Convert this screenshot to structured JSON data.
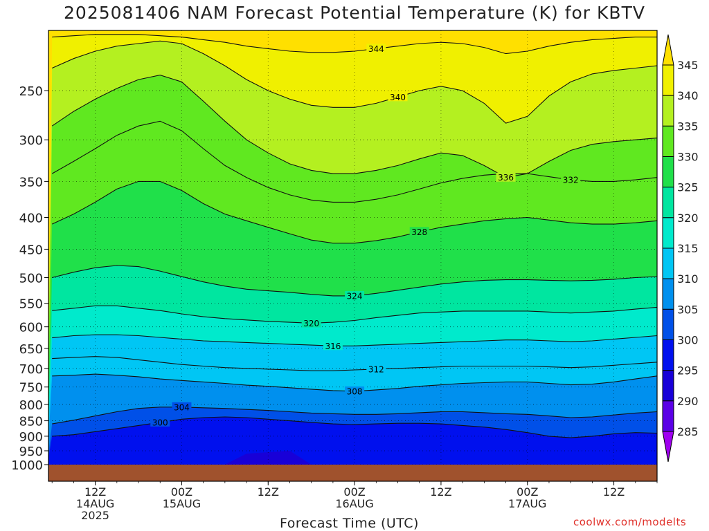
{
  "title": "2025081406 NAM Forecast Potential Temperature (K) for KBTV",
  "credit": "coolwx.com/modelts",
  "chart_data": {
    "type": "heatmap",
    "title": "2025081406 NAM Forecast Potential Temperature (K) for KBTV",
    "xlabel": "Forecast Time (UTC)",
    "ylabel": "",
    "x_ticks": [
      {
        "hour": 6,
        "lines": [
          "12Z",
          "14AUG",
          "2025"
        ]
      },
      {
        "hour": 18,
        "lines": [
          "00Z",
          "15AUG"
        ]
      },
      {
        "hour": 30,
        "lines": [
          "12Z"
        ]
      },
      {
        "hour": 42,
        "lines": [
          "00Z",
          "16AUG"
        ]
      },
      {
        "hour": 54,
        "lines": [
          "12Z"
        ]
      },
      {
        "hour": 66,
        "lines": [
          "00Z",
          "17AUG"
        ]
      },
      {
        "hour": 78,
        "lines": [
          "12Z"
        ]
      }
    ],
    "xlim_hours": [
      -0.5,
      84
    ],
    "y_ticks": [
      250,
      300,
      350,
      400,
      450,
      500,
      550,
      600,
      650,
      700,
      750,
      800,
      850,
      900,
      950,
      1000
    ],
    "ylim_hpa": [
      200,
      1000
    ],
    "y_scale": "log",
    "grid": "dotted",
    "colorbar_levels": [
      285,
      290,
      295,
      300,
      305,
      310,
      315,
      320,
      325,
      330,
      335,
      340,
      345
    ],
    "colorbar_colors": [
      "#a000f0",
      "#5a00e6",
      "#1800d8",
      "#0010ee",
      "#0050e8",
      "#0090ee",
      "#00c6f4",
      "#00eacc",
      "#00e6a0",
      "#20e04a",
      "#60e820",
      "#b4f020",
      "#f0f000",
      "#ffe000"
    ],
    "times": [
      0,
      3,
      6,
      9,
      12,
      15,
      18,
      21,
      24,
      27,
      30,
      33,
      36,
      39,
      42,
      45,
      48,
      51,
      54,
      57,
      60,
      63,
      66,
      69,
      72,
      75,
      78,
      81,
      84
    ],
    "series": [
      {
        "isotherm": 300,
        "pressure": [
          900,
          895,
          885,
          875,
          865,
          855,
          845,
          840,
          838,
          840,
          845,
          850,
          855,
          860,
          862,
          860,
          858,
          858,
          860,
          865,
          870,
          878,
          888,
          900,
          905,
          900,
          892,
          888,
          890
        ]
      },
      {
        "isotherm": 304,
        "pressure": [
          860,
          848,
          835,
          822,
          812,
          808,
          808,
          810,
          812,
          815,
          818,
          822,
          826,
          828,
          830,
          830,
          828,
          825,
          822,
          822,
          825,
          828,
          830,
          835,
          840,
          838,
          832,
          826,
          822
        ]
      },
      {
        "isotherm": 308,
        "pressure": [
          720,
          718,
          715,
          718,
          722,
          728,
          732,
          736,
          740,
          745,
          748,
          752,
          756,
          760,
          762,
          758,
          754,
          748,
          744,
          740,
          738,
          736,
          736,
          740,
          744,
          742,
          736,
          728,
          720
        ]
      },
      {
        "isotherm": 312,
        "pressure": [
          675,
          672,
          670,
          672,
          678,
          684,
          690,
          694,
          698,
          700,
          702,
          704,
          706,
          706,
          704,
          702,
          700,
          698,
          696,
          694,
          694,
          694,
          694,
          696,
          698,
          696,
          692,
          688,
          684
        ]
      },
      {
        "isotherm": 316,
        "pressure": [
          625,
          620,
          618,
          618,
          620,
          624,
          628,
          632,
          634,
          636,
          638,
          640,
          642,
          644,
          644,
          642,
          640,
          638,
          636,
          634,
          632,
          630,
          630,
          632,
          634,
          632,
          628,
          624,
          620
        ]
      },
      {
        "isotherm": 320,
        "pressure": [
          565,
          560,
          555,
          555,
          560,
          565,
          572,
          578,
          582,
          585,
          588,
          590,
          592,
          590,
          586,
          580,
          575,
          570,
          568,
          566,
          566,
          566,
          566,
          568,
          570,
          568,
          566,
          562,
          558
        ]
      },
      {
        "isotherm": 324,
        "pressure": [
          500,
          490,
          482,
          478,
          480,
          488,
          498,
          508,
          516,
          522,
          525,
          528,
          532,
          535,
          535,
          530,
          524,
          518,
          512,
          508,
          505,
          504,
          504,
          505,
          506,
          505,
          503,
          500,
          498
        ]
      },
      {
        "isotherm": 328,
        "pressure": [
          410,
          395,
          378,
          360,
          350,
          350,
          362,
          380,
          395,
          405,
          415,
          425,
          435,
          440,
          440,
          436,
          430,
          422,
          415,
          410,
          405,
          402,
          400,
          404,
          408,
          410,
          410,
          408,
          405
        ]
      },
      {
        "isotherm": 332,
        "pressure": [
          340,
          325,
          310,
          295,
          285,
          280,
          290,
          310,
          330,
          345,
          358,
          368,
          375,
          378,
          378,
          374,
          368,
          360,
          352,
          346,
          342,
          340,
          340,
          344,
          348,
          350,
          350,
          348,
          345
        ]
      },
      {
        "isotherm": 336,
        "pressure": [
          285,
          270,
          258,
          248,
          240,
          236,
          242,
          260,
          280,
          300,
          315,
          328,
          336,
          340,
          340,
          336,
          330,
          322,
          315,
          318,
          330,
          345,
          340,
          325,
          312,
          305,
          302,
          300,
          298
        ]
      },
      {
        "isotherm": 340,
        "pressure": [
          230,
          222,
          216,
          212,
          210,
          208,
          210,
          218,
          228,
          240,
          250,
          258,
          264,
          266,
          266,
          262,
          256,
          250,
          246,
          250,
          262,
          282,
          275,
          255,
          242,
          235,
          232,
          230,
          228
        ]
      },
      {
        "isotherm": 344,
        "pressure": [
          205,
          204,
          203,
          203,
          203,
          204,
          205,
          207,
          209,
          212,
          214,
          216,
          217,
          217,
          216,
          214,
          212,
          210,
          209,
          210,
          213,
          218,
          216,
          212,
          209,
          207,
          206,
          205,
          205
        ]
      }
    ],
    "surface_ground_color": "#a0522d"
  }
}
